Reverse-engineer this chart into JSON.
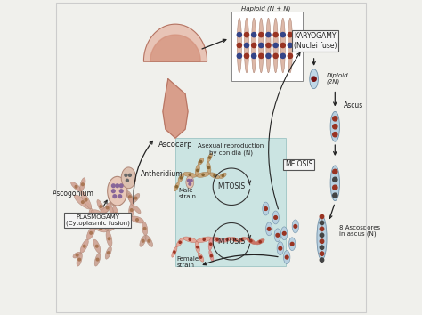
{
  "bg_color": "#f0f0ec",
  "colors": {
    "hyphae_peach": "#d4a898",
    "hyphae_edge": "#b08878",
    "hyphae_brown": "#c8a070",
    "hyphae_brown_edge": "#a07848",
    "hyphae_pink": "#e8a090",
    "hyphae_pink_edge": "#c07060",
    "hyphae_red": "#cc6644",
    "ascus_blue": "#b8d0e0",
    "ascus_edge": "#7090a8",
    "spore_red": "#993322",
    "spore_darkred": "#771111",
    "spore_blue": "#334488",
    "spore_dark": "#444444",
    "ascocarp_pink": "#d4907a",
    "ascocarp_edge": "#b07060",
    "ascocarp_light": "#e8c0b0",
    "text_color": "#222222",
    "arrow_color": "#222222",
    "box_fill": "#f5f5f5",
    "box_edge": "#555555",
    "asexual_fill": "#b8dede",
    "asexual_edge": "#88b8b8",
    "haploid_fill": "#ffffff",
    "haploid_edge": "#888888",
    "diploid_blue": "#c0d8e8",
    "dot_purple": "#886699"
  },
  "labels": {
    "ascocarp": "Ascocarp",
    "haploid": "Haploid (N + N)",
    "karyogamy": "KARYOGAMY\n(Nuclei fuse)",
    "diploid": "Diploid\n(2N)",
    "ascus": "Ascus",
    "meiosis": "MEIOSIS",
    "ascospores": "8 Ascospores\nin ascus (N)",
    "asexual": "Asexual reproduction\nby conidia (N)",
    "mitosis": "MITOSIS",
    "male_strain": "Male\nstrain",
    "female_strain": "Female\nstrain",
    "ascogonium": "Ascogonium",
    "antheridium": "Antheridium",
    "plasmogamy": "PLASMOGAMY\n(Cytoplasmic fusion)"
  }
}
